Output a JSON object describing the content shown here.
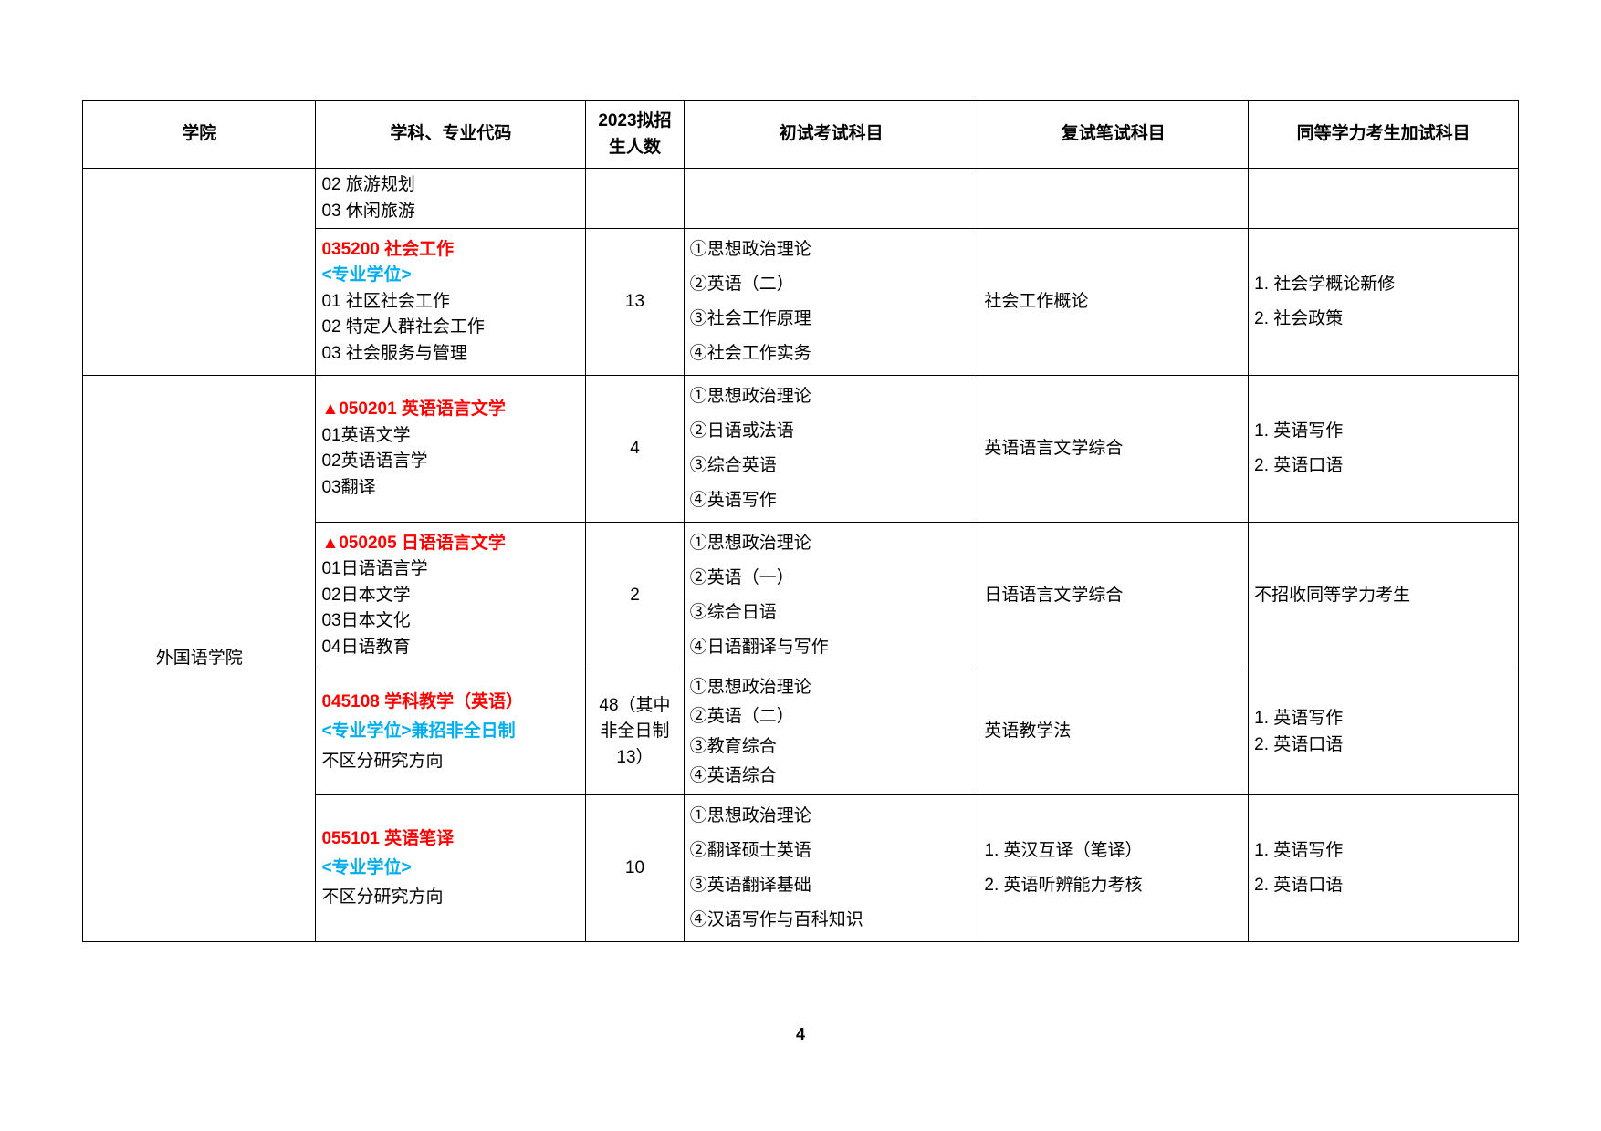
{
  "headers": {
    "college": "学院",
    "major": "学科、专业代码",
    "enroll": "2023拟招生人数",
    "exam1": "初试考试科目",
    "exam2": "复试笔试科目",
    "exam3": "同等学力考生加试科目"
  },
  "rows": [
    {
      "major_lines": [
        "02 旅游规划",
        "03 休闲旅游"
      ]
    },
    {
      "major_title": "035200  社会工作",
      "degree_type": "<专业学位>",
      "major_lines": [
        "01 社区社会工作",
        "02 特定人群社会工作",
        "03 社会服务与管理"
      ],
      "enroll": "13",
      "exam1": [
        "①思想政治理论",
        "②英语（二）",
        "③社会工作原理",
        "④社会工作实务"
      ],
      "exam2": "社会工作概论",
      "exam3": [
        "1. 社会学概论新修",
        "2. 社会政策"
      ]
    },
    {
      "college": "外国语学院",
      "major_title": "▲050201  英语语言文学",
      "major_lines": [
        "01英语文学",
        "02英语语言学",
        "03翻译"
      ],
      "enroll": "4",
      "exam1": [
        "①思想政治理论",
        "②日语或法语",
        "③综合英语",
        "④英语写作"
      ],
      "exam2": "英语语言文学综合",
      "exam3": [
        "1. 英语写作",
        "2. 英语口语"
      ]
    },
    {
      "major_title": "▲050205  日语语言文学",
      "major_lines": [
        "01日语语言学",
        "02日本文学",
        "03日本文化",
        "04日语教育"
      ],
      "enroll": "2",
      "exam1": [
        "①思想政治理论",
        "②英语（一）",
        "③综合日语",
        "④日语翻译与写作"
      ],
      "exam2": "日语语言文学综合",
      "exam3_single": "不招收同等学力考生"
    },
    {
      "major_title": "045108  学科教学（英语）",
      "degree_type": "<专业学位>兼招非全日制",
      "major_lines": [
        "不区分研究方向"
      ],
      "enroll": "48（其中非全日制13）",
      "exam1": [
        "①思想政治理论",
        "②英语（二）",
        "③教育综合",
        "④英语综合"
      ],
      "exam2": "英语教学法",
      "exam3": [
        "1. 英语写作",
        "2. 英语口语"
      ]
    },
    {
      "major_title": "055101  英语笔译",
      "degree_type": "<专业学位>",
      "major_lines": [
        "不区分研究方向"
      ],
      "enroll": "10",
      "exam1": [
        "①思想政治理论",
        "②翻译硕士英语",
        "③英语翻译基础",
        "④汉语写作与百科知识"
      ],
      "exam2": [
        "1. 英汉互译（笔译）",
        "2. 英语听辨能力考核"
      ],
      "exam3": [
        "1. 英语写作",
        "2. 英语口语"
      ]
    }
  ],
  "page_number": "4"
}
